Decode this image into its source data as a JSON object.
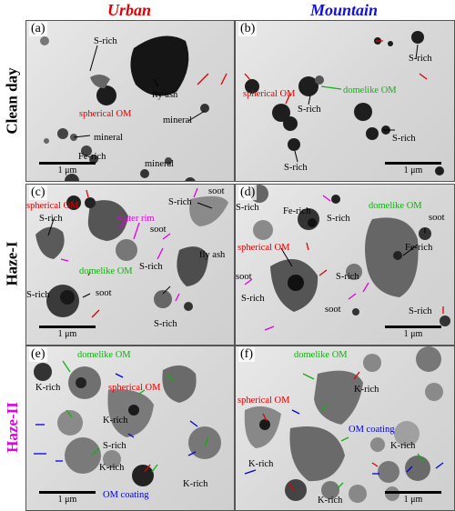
{
  "columns": {
    "urban": "Urban",
    "mountain": "Mountain"
  },
  "rows": {
    "clean": "Clean day",
    "haze1": "Haze-I",
    "haze2": "Haze-II"
  },
  "colors": {
    "urban": "#e00000",
    "mountain": "#1010e0",
    "haze2": "#e000e0"
  },
  "panels": {
    "a": {
      "label": "(a)",
      "scale": "1 μm",
      "annotations": [
        "S-rich",
        "spherical OM",
        "fly ash",
        "mineral",
        "mineral",
        "Fe-rich",
        "mineral"
      ]
    },
    "b": {
      "label": "(b)",
      "scale": "1 μm",
      "annotations": [
        "S-rich",
        "domelike OM",
        "S-rich",
        "spherical OM",
        "S-rich",
        "S-rich"
      ]
    },
    "c": {
      "label": "(c)",
      "scale": "1 μm",
      "annotations": [
        "soot",
        "spherical OM",
        "S-rich",
        "S-rich",
        "water rim",
        "soot",
        "domelike OM",
        "S-rich",
        "fly ash",
        "S-rich",
        "soot",
        "S-rich"
      ]
    },
    "d": {
      "label": "(d)",
      "scale": "1 μm",
      "annotations": [
        "S-rich",
        "Fe-rich",
        "domelike OM",
        "S-rich",
        "soot",
        "spherical OM",
        "Fe-rich",
        "S-rich",
        "soot",
        "S-rich",
        "soot",
        "S-rich"
      ]
    },
    "e": {
      "label": "(e)",
      "scale": "1 μm",
      "annotations": [
        "domelike OM",
        "K-rich",
        "spherical OM",
        "K-rich",
        "S-rich",
        "K-rich",
        "K-rich",
        "OM coating"
      ]
    },
    "f": {
      "label": "(f)",
      "scale": "1 μm",
      "annotations": [
        "domelike OM",
        "K-rich",
        "spherical OM",
        "OM coating",
        "K-rich",
        "K-rich",
        "K-rich"
      ]
    }
  }
}
